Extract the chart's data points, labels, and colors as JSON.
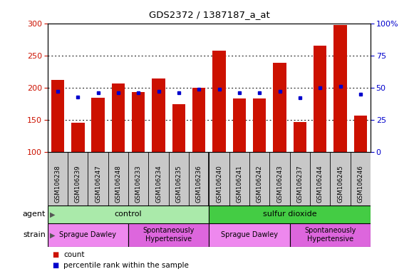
{
  "title": "GDS2372 / 1387187_a_at",
  "samples": [
    "GSM106238",
    "GSM106239",
    "GSM106247",
    "GSM106248",
    "GSM106233",
    "GSM106234",
    "GSM106235",
    "GSM106236",
    "GSM106240",
    "GSM106241",
    "GSM106242",
    "GSM106243",
    "GSM106237",
    "GSM106244",
    "GSM106245",
    "GSM106246"
  ],
  "counts": [
    212,
    146,
    184,
    206,
    193,
    214,
    174,
    200,
    258,
    183,
    183,
    239,
    147,
    265,
    297,
    157
  ],
  "percentiles": [
    47,
    43,
    46,
    46,
    46,
    47,
    46,
    49,
    49,
    46,
    46,
    47,
    42,
    50,
    51,
    45
  ],
  "ylim_left": [
    100,
    300
  ],
  "ylim_right": [
    0,
    100
  ],
  "yticks_left": [
    100,
    150,
    200,
    250,
    300
  ],
  "yticks_right": [
    0,
    25,
    50,
    75,
    100
  ],
  "bar_color": "#cc1100",
  "dot_color": "#0000cc",
  "plot_bg_color": "#ffffff",
  "label_bg_color": "#c8c8c8",
  "agent_groups": [
    {
      "label": "control",
      "start": 0,
      "end": 8,
      "color": "#aaeaaa"
    },
    {
      "label": "sulfur dioxide",
      "start": 8,
      "end": 16,
      "color": "#44cc44"
    }
  ],
  "strain_groups": [
    {
      "label": "Sprague Dawley",
      "start": 0,
      "end": 4,
      "color": "#ee88ee"
    },
    {
      "label": "Spontaneously\nHypertensive",
      "start": 4,
      "end": 8,
      "color": "#dd66dd"
    },
    {
      "label": "Sprague Dawley",
      "start": 8,
      "end": 12,
      "color": "#ee88ee"
    },
    {
      "label": "Spontaneously\nHypertensive",
      "start": 12,
      "end": 16,
      "color": "#dd66dd"
    }
  ]
}
